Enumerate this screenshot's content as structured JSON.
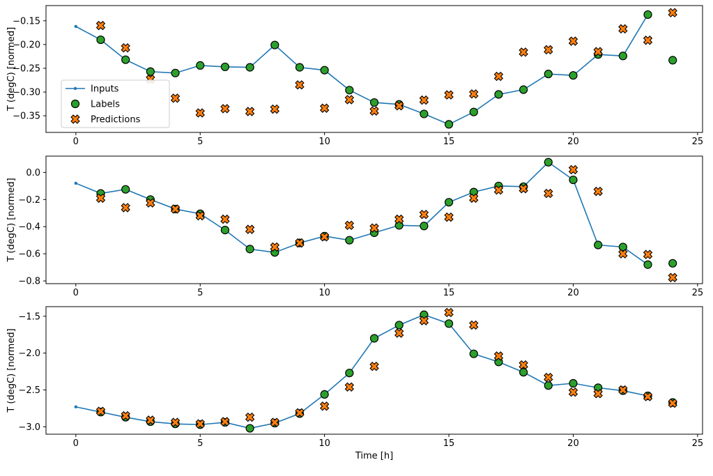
{
  "figure": {
    "xlabel": "Time [h]",
    "ylabel": "T (degC) [normed]",
    "background": "#ffffff",
    "legend": {
      "position": "center-left-of-first-subplot",
      "items": [
        {
          "label": "Inputs",
          "marker": "line-dot",
          "color": "#1f77b4"
        },
        {
          "label": "Labels",
          "marker": "circle",
          "color": "#2ca02c"
        },
        {
          "label": "Predictions",
          "marker": "X",
          "color": "#ff7f0e"
        }
      ]
    }
  },
  "chart_data": [
    {
      "type": "line",
      "subplot": 1,
      "ylabel": "T (degC) [normed]",
      "xlim": [
        -1.2,
        25.2
      ],
      "ylim": [
        -0.385,
        -0.118
      ],
      "grid": false,
      "legend_visible": true,
      "xticks": {
        "values": [
          0,
          5,
          10,
          15,
          20,
          25
        ],
        "labels": [
          "0",
          "5",
          "10",
          "15",
          "20",
          "25"
        ]
      },
      "yticks": {
        "values": [
          -0.15,
          -0.2,
          -0.25,
          -0.3,
          -0.35
        ],
        "labels": [
          "−0.15",
          "−0.20",
          "−0.25",
          "−0.30",
          "−0.35"
        ]
      },
      "series": [
        {
          "name": "Inputs",
          "type": "line",
          "marker": "dot",
          "color": "#1f77b4",
          "x": [
            0,
            1,
            2,
            3,
            4,
            5,
            6,
            7,
            8,
            9,
            10,
            11,
            12,
            13,
            14,
            15,
            16,
            17,
            18,
            19,
            20,
            21,
            22,
            23
          ],
          "y": [
            -0.162,
            -0.19,
            -0.232,
            -0.257,
            -0.26,
            -0.244,
            -0.247,
            -0.248,
            -0.201,
            -0.248,
            -0.254,
            -0.296,
            -0.322,
            -0.326,
            -0.346,
            -0.368,
            -0.342,
            -0.305,
            -0.295,
            -0.262,
            -0.265,
            -0.221,
            -0.224,
            -0.137
          ]
        },
        {
          "name": "Labels",
          "type": "scatter",
          "marker": "circle",
          "color": "#2ca02c",
          "x": [
            1,
            2,
            3,
            4,
            5,
            6,
            7,
            8,
            9,
            10,
            11,
            12,
            13,
            14,
            15,
            16,
            17,
            18,
            19,
            20,
            21,
            22,
            23,
            24
          ],
          "y": [
            -0.19,
            -0.232,
            -0.257,
            -0.26,
            -0.244,
            -0.247,
            -0.248,
            -0.201,
            -0.248,
            -0.254,
            -0.296,
            -0.322,
            -0.326,
            -0.346,
            -0.368,
            -0.342,
            -0.305,
            -0.295,
            -0.262,
            -0.265,
            -0.221,
            -0.224,
            -0.137,
            -0.233
          ]
        },
        {
          "name": "Predictions",
          "type": "scatter",
          "marker": "X",
          "color": "#ff7f0e",
          "x": [
            1,
            2,
            3,
            4,
            5,
            6,
            7,
            8,
            9,
            10,
            11,
            12,
            13,
            14,
            15,
            16,
            17,
            18,
            19,
            20,
            21,
            22,
            23,
            24
          ],
          "y": [
            -0.16,
            -0.207,
            -0.273,
            -0.313,
            -0.344,
            -0.335,
            -0.341,
            -0.336,
            -0.285,
            -0.334,
            -0.316,
            -0.34,
            -0.329,
            -0.317,
            -0.306,
            -0.304,
            -0.267,
            -0.216,
            -0.211,
            -0.193,
            -0.215,
            -0.167,
            -0.191,
            -0.133
          ]
        }
      ]
    },
    {
      "type": "line",
      "subplot": 2,
      "ylabel": "T (degC) [normed]",
      "xlim": [
        -1.2,
        25.2
      ],
      "ylim": [
        -0.82,
        0.12
      ],
      "grid": false,
      "legend_visible": false,
      "xticks": {
        "values": [
          0,
          5,
          10,
          15,
          20,
          25
        ],
        "labels": [
          "0",
          "5",
          "10",
          "15",
          "20",
          "25"
        ]
      },
      "yticks": {
        "values": [
          0.0,
          -0.2,
          -0.4,
          -0.6,
          -0.8
        ],
        "labels": [
          "0.0",
          "−0.2",
          "−0.4",
          "−0.6",
          "−0.8"
        ]
      },
      "series": [
        {
          "name": "Inputs",
          "type": "line",
          "marker": "dot",
          "color": "#1f77b4",
          "x": [
            0,
            1,
            2,
            3,
            4,
            5,
            6,
            7,
            8,
            9,
            10,
            11,
            12,
            13,
            14,
            15,
            16,
            17,
            18,
            19,
            20,
            21,
            22,
            23
          ],
          "y": [
            -0.08,
            -0.155,
            -0.125,
            -0.2,
            -0.27,
            -0.305,
            -0.425,
            -0.565,
            -0.59,
            -0.52,
            -0.47,
            -0.5,
            -0.445,
            -0.39,
            -0.395,
            -0.22,
            -0.145,
            -0.1,
            -0.105,
            0.075,
            -0.055,
            -0.535,
            -0.55,
            -0.68
          ]
        },
        {
          "name": "Labels",
          "type": "scatter",
          "marker": "circle",
          "color": "#2ca02c",
          "x": [
            1,
            2,
            3,
            4,
            5,
            6,
            7,
            8,
            9,
            10,
            11,
            12,
            13,
            14,
            15,
            16,
            17,
            18,
            19,
            20,
            21,
            22,
            23,
            24
          ],
          "y": [
            -0.155,
            -0.125,
            -0.2,
            -0.27,
            -0.305,
            -0.425,
            -0.565,
            -0.59,
            -0.52,
            -0.47,
            -0.5,
            -0.445,
            -0.39,
            -0.395,
            -0.22,
            -0.145,
            -0.1,
            -0.105,
            0.075,
            -0.055,
            -0.535,
            -0.55,
            -0.68,
            -0.67
          ]
        },
        {
          "name": "Predictions",
          "type": "scatter",
          "marker": "X",
          "color": "#ff7f0e",
          "x": [
            1,
            2,
            3,
            4,
            5,
            6,
            7,
            8,
            9,
            10,
            11,
            12,
            13,
            14,
            15,
            16,
            17,
            18,
            19,
            20,
            21,
            22,
            23,
            24
          ],
          "y": [
            -0.19,
            -0.26,
            -0.225,
            -0.27,
            -0.32,
            -0.345,
            -0.42,
            -0.55,
            -0.52,
            -0.475,
            -0.39,
            -0.41,
            -0.345,
            -0.31,
            -0.33,
            -0.19,
            -0.13,
            -0.12,
            -0.155,
            0.02,
            -0.14,
            -0.6,
            -0.605,
            -0.775
          ]
        }
      ]
    },
    {
      "type": "line",
      "subplot": 3,
      "ylabel": "T (degC) [normed]",
      "xlabel": "Time [h]",
      "xlim": [
        -1.2,
        25.2
      ],
      "ylim": [
        -3.1,
        -1.37
      ],
      "grid": false,
      "legend_visible": false,
      "xticks": {
        "values": [
          0,
          5,
          10,
          15,
          20,
          25
        ],
        "labels": [
          "0",
          "5",
          "10",
          "15",
          "20",
          "25"
        ]
      },
      "yticks": {
        "values": [
          -1.5,
          -2.0,
          -2.5,
          -3.0
        ],
        "labels": [
          "−1.5",
          "−2.0",
          "−2.5",
          "−3.0"
        ]
      },
      "series": [
        {
          "name": "Inputs",
          "type": "line",
          "marker": "dot",
          "color": "#1f77b4",
          "x": [
            0,
            1,
            2,
            3,
            4,
            5,
            6,
            7,
            8,
            9,
            10,
            11,
            12,
            13,
            14,
            15,
            16,
            17,
            18,
            19,
            20,
            21,
            22,
            23
          ],
          "y": [
            -2.73,
            -2.8,
            -2.87,
            -2.93,
            -2.96,
            -2.97,
            -2.94,
            -3.02,
            -2.95,
            -2.82,
            -2.56,
            -2.27,
            -1.8,
            -1.62,
            -1.48,
            -1.6,
            -2.01,
            -2.12,
            -2.26,
            -2.44,
            -2.41,
            -2.47,
            -2.51,
            -2.58
          ]
        },
        {
          "name": "Labels",
          "type": "scatter",
          "marker": "circle",
          "color": "#2ca02c",
          "x": [
            1,
            2,
            3,
            4,
            5,
            6,
            7,
            8,
            9,
            10,
            11,
            12,
            13,
            14,
            15,
            16,
            17,
            18,
            19,
            20,
            21,
            22,
            23,
            24
          ],
          "y": [
            -2.8,
            -2.87,
            -2.93,
            -2.96,
            -2.97,
            -2.94,
            -3.02,
            -2.95,
            -2.82,
            -2.56,
            -2.27,
            -1.8,
            -1.62,
            -1.48,
            -1.6,
            -2.01,
            -2.12,
            -2.26,
            -2.44,
            -2.41,
            -2.47,
            -2.51,
            -2.58,
            -2.67
          ]
        },
        {
          "name": "Predictions",
          "type": "scatter",
          "marker": "X",
          "color": "#ff7f0e",
          "x": [
            1,
            2,
            3,
            4,
            5,
            6,
            7,
            8,
            9,
            10,
            11,
            12,
            13,
            14,
            15,
            16,
            17,
            18,
            19,
            20,
            21,
            22,
            23,
            24
          ],
          "y": [
            -2.79,
            -2.85,
            -2.91,
            -2.94,
            -2.96,
            -2.93,
            -2.87,
            -2.94,
            -2.81,
            -2.72,
            -2.46,
            -2.18,
            -1.73,
            -1.56,
            -1.45,
            -1.62,
            -2.04,
            -2.16,
            -2.33,
            -2.53,
            -2.55,
            -2.5,
            -2.59,
            -2.68
          ]
        }
      ]
    }
  ]
}
